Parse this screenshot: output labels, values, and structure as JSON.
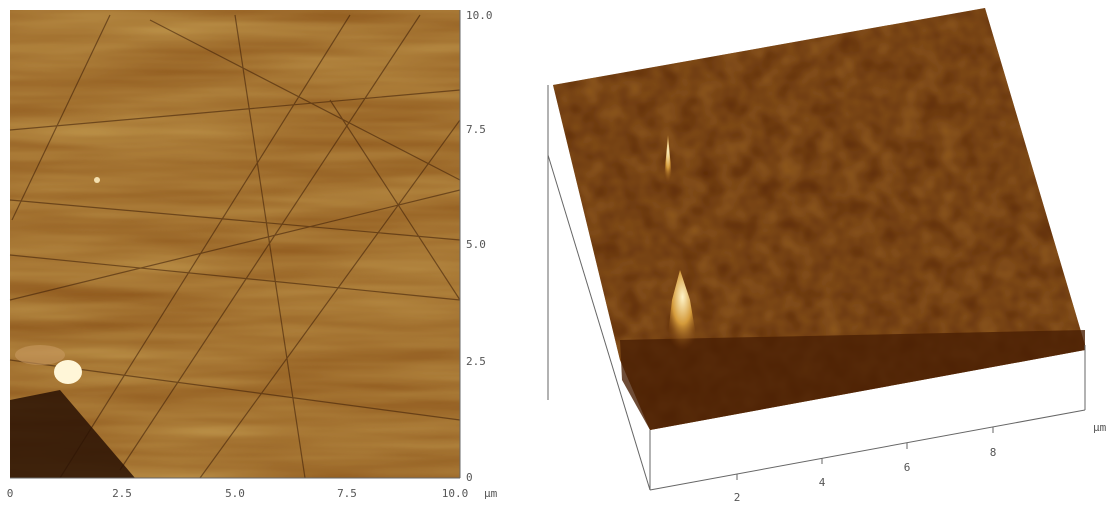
{
  "left_panel": {
    "x_ticks": [
      "0",
      "2.5",
      "5.0",
      "7.5",
      "10.0"
    ],
    "y_ticks": [
      "10.0",
      "7.5",
      "5.0",
      "2.5",
      "0"
    ],
    "unit": "μm"
  },
  "right_panel": {
    "x_ticks": [
      "2",
      "4",
      "6",
      "8"
    ],
    "unit": "μm"
  }
}
